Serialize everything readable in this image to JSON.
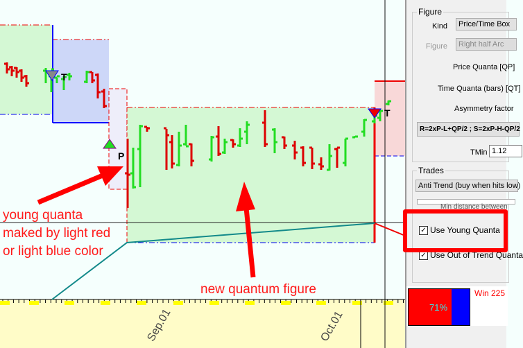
{
  "chart": {
    "markers": {
      "t1": "T",
      "p": "P",
      "t2": "T"
    },
    "x_axis_labels": [
      "Sep.01",
      "Oct.01"
    ],
    "annotations": {
      "young_quanta": [
        "young quanta",
        "maked by light red",
        "or light blue color"
      ],
      "new_quantum": "new quantum figure"
    },
    "colors": {
      "up_bar": "#22dd22",
      "down_bar": "#dd0000",
      "quantum_fill": "#d4f8d4",
      "young_blue": "#cdd7f8",
      "young_red": "#f8d8d8",
      "annotation": "#ff1a1a"
    }
  },
  "panel": {
    "figure": {
      "title": "Figure",
      "kind_label": "Kind",
      "kind_value": "Price/Time Box",
      "figure_label": "Figure",
      "figure_value": "Right half Arc",
      "price_quanta": "Price Quanta [QP]",
      "time_quanta": "Time Quanta (bars) [QT]",
      "asymmetry": "Asymmetry factor",
      "formula": "R=2xP-L+QP/2 ;  S=2xP-H-QP/2",
      "tmin_label": "TMin",
      "tmin_value": "1.12"
    },
    "trades": {
      "title": "Trades",
      "mode": "Anti Trend (buy when hits low)",
      "min_distance": "Min distance between",
      "use_young": "Use Young Quanta",
      "use_out_of_trend": "Use Out of Trend Quanta"
    },
    "stats": {
      "win_pct": "71%",
      "win_fraction": 0.71,
      "win_label": "Win 225"
    }
  }
}
